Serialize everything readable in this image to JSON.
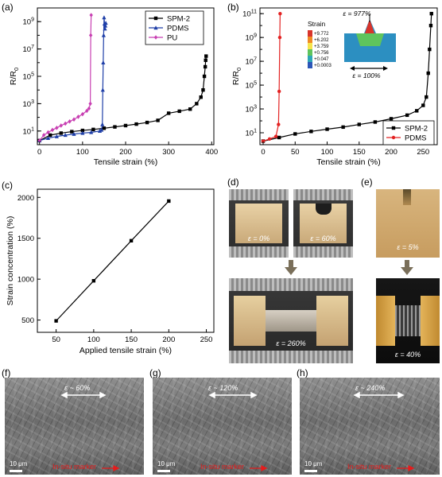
{
  "panel_labels": {
    "a": "(a)",
    "b": "(b)",
    "c": "(c)",
    "d": "(d)",
    "e": "(e)",
    "f": "(f)",
    "g": "(g)",
    "h": "(h)"
  },
  "chart_data": [
    {
      "id": "a",
      "type": "line",
      "xlabel": "Tensile strain (%)",
      "ylabel": "R/R",
      "ylabel_sub": "0",
      "x_ticks": [
        0,
        100,
        200,
        300,
        400
      ],
      "y_ticks": [
        {
          "exp": "1",
          "value": 10
        },
        {
          "exp": "3",
          "value": 1000
        },
        {
          "exp": "5",
          "value": 100000
        },
        {
          "exp": "7",
          "value": 10000000
        },
        {
          "exp": "9",
          "value": 1000000000
        }
      ],
      "y_scale": "log",
      "xlim": [
        -5,
        405
      ],
      "ylim": [
        1,
        10000000000
      ],
      "legend_position": "top-right",
      "series": [
        {
          "name": "SPM-2",
          "color": "#000000",
          "marker": "square",
          "x": [
            0,
            25,
            50,
            75,
            100,
            125,
            150,
            175,
            200,
            225,
            250,
            275,
            300,
            325,
            350,
            365,
            375,
            380,
            383,
            385,
            386,
            387
          ],
          "y": [
            2,
            5,
            7,
            9,
            11,
            13,
            16,
            20,
            25,
            32,
            42,
            60,
            200,
            280,
            400,
            1000,
            3000,
            10000,
            100000,
            500000,
            1500000,
            3000000
          ]
        },
        {
          "name": "PDMS",
          "color": "#1f3fa8",
          "marker": "triangle",
          "x": [
            0,
            20,
            40,
            60,
            80,
            100,
            120,
            140,
            144,
            146,
            147,
            148,
            149,
            150,
            151,
            152,
            153,
            154
          ],
          "y": [
            2,
            3,
            4,
            5,
            6,
            7,
            8,
            10,
            12,
            30,
            10000,
            1000000,
            100000000,
            2000000000,
            700000000,
            300000000,
            500000000,
            800000000
          ]
        },
        {
          "name": "PU",
          "color": "#c83fb2",
          "marker": "diamond",
          "x": [
            0,
            10,
            20,
            30,
            40,
            50,
            60,
            70,
            80,
            90,
            100,
            110,
            115,
            118,
            119,
            120
          ],
          "y": [
            2,
            5,
            8,
            12,
            17,
            25,
            35,
            50,
            70,
            110,
            170,
            300,
            450,
            1000,
            100000000,
            3000000000
          ]
        }
      ]
    },
    {
      "id": "b",
      "type": "line",
      "xlabel": "Tensile strain (%)",
      "ylabel": "R/R",
      "ylabel_sub": "0",
      "x_ticks": [
        0,
        50,
        100,
        150,
        200,
        250
      ],
      "y_ticks": [
        {
          "exp": "1",
          "value": 10
        },
        {
          "exp": "3",
          "value": 1000
        },
        {
          "exp": "5",
          "value": 100000
        },
        {
          "exp": "7",
          "value": 10000000
        },
        {
          "exp": "9",
          "value": 1000000000
        },
        {
          "exp": "11",
          "value": 100000000000
        }
      ],
      "y_scale": "log",
      "xlim": [
        -5,
        272
      ],
      "ylim": [
        1,
        300000000000
      ],
      "legend_position": "bottom-right",
      "series": [
        {
          "name": "SPM-2",
          "color": "#000000",
          "marker": "square",
          "x": [
            0,
            25,
            50,
            75,
            100,
            125,
            150,
            175,
            200,
            225,
            240,
            250,
            255,
            258,
            260,
            262,
            263
          ],
          "y": [
            2,
            4,
            8,
            13,
            20,
            30,
            50,
            80,
            150,
            300,
            700,
            2000,
            10000,
            1000000,
            100000000,
            10000000000,
            100000000000
          ]
        },
        {
          "name": "PDMS",
          "color": "#e32222",
          "marker": "circle",
          "x": [
            0,
            10,
            20,
            24,
            25,
            26,
            26.5
          ],
          "y": [
            2,
            3,
            5,
            50,
            30000,
            1000000000,
            100000000000
          ]
        }
      ],
      "inset": {
        "legend_title": "Strain",
        "colorbar_labels": [
          "+9.772",
          "+6.202",
          "+3.759",
          "+0.756",
          "+0.047",
          "+0.0003"
        ],
        "top_label": "ε = 977%",
        "bottom_label": "ε = 100%"
      }
    },
    {
      "id": "c",
      "type": "line",
      "xlabel": "Applied tensile strain (%)",
      "ylabel": "Strain concentration (%)",
      "x_ticks": [
        50,
        100,
        150,
        200,
        250
      ],
      "y_ticks": [
        500,
        1000,
        1500,
        2000
      ],
      "xlim": [
        25,
        260
      ],
      "ylim": [
        350,
        2100
      ],
      "series": [
        {
          "color": "#000000",
          "marker": "square",
          "x": [
            50,
            100,
            150,
            200
          ],
          "y": [
            490,
            980,
            1470,
            1955
          ]
        }
      ]
    }
  ],
  "photos": {
    "d": {
      "top_left": "ε = 0%",
      "top_right": "ε = 60%",
      "bottom": "ε = 260%"
    },
    "e": {
      "top": "ε = 5%",
      "bottom": "ε = 40%"
    }
  },
  "sem": [
    {
      "id": "f",
      "strain": "ε ~ 60%",
      "scale": "10 μm",
      "marker": "In-situ marker"
    },
    {
      "id": "g",
      "strain": "ε ~ 120%",
      "scale": "10 μm",
      "marker": "In-situ marker"
    },
    {
      "id": "h",
      "strain": "ε ~ 240%",
      "scale": "10 μm",
      "marker": "In-situ marker"
    }
  ],
  "colors": {
    "colorbar": [
      "#d8342b",
      "#f08a24",
      "#f6e34a",
      "#5fc45d",
      "#2ea7b7",
      "#2c56b8"
    ],
    "arrow": "#7a6f5a",
    "sem_marker": "#e51c1c"
  }
}
